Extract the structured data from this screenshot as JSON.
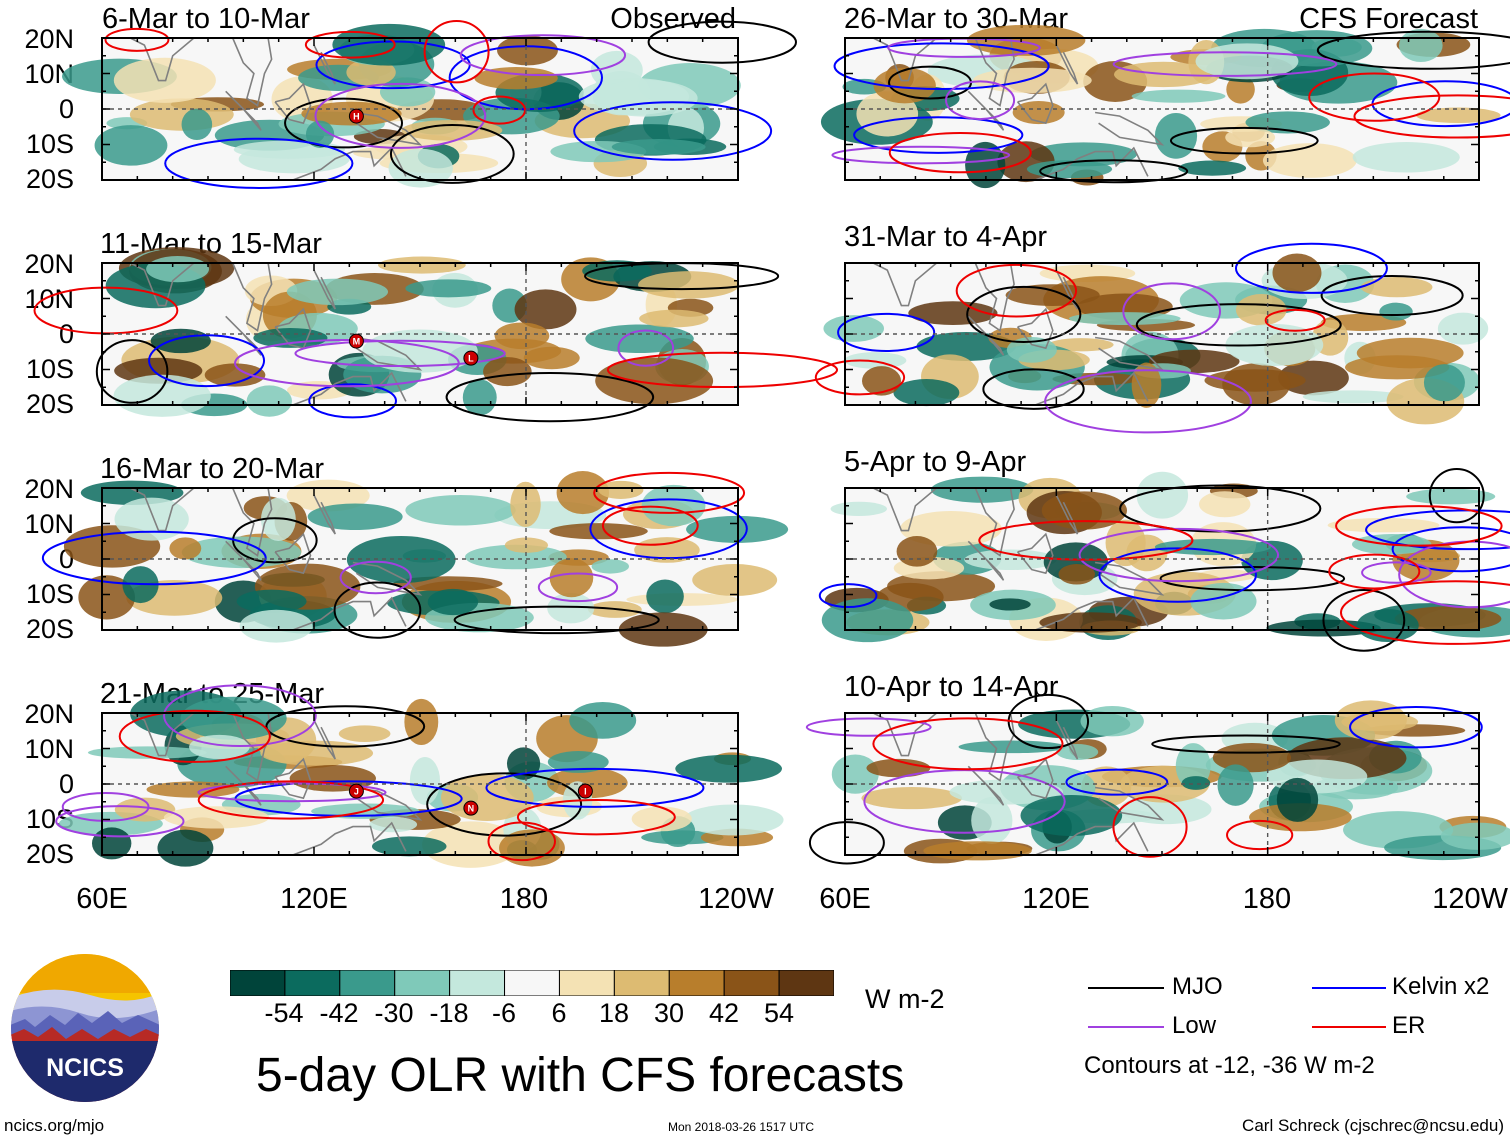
{
  "left_column": {
    "tag": "Observed",
    "panels": [
      {
        "title": "6-Mar to 10-Mar"
      },
      {
        "title": "11-Mar to 15-Mar"
      },
      {
        "title": "16-Mar to 20-Mar"
      },
      {
        "title": "21-Mar to 25-Mar"
      }
    ]
  },
  "right_column": {
    "tag": "CFS Forecast",
    "panels": [
      {
        "title": "26-Mar to 30-Mar"
      },
      {
        "title": "31-Mar to 4-Apr"
      },
      {
        "title": "5-Apr to 9-Apr"
      },
      {
        "title": "10-Apr to 14-Apr"
      }
    ]
  },
  "lat_labels": [
    "20N",
    "10N",
    "0",
    "10S",
    "20S"
  ],
  "lon_labels": [
    "60E",
    "120E",
    "180",
    "120W"
  ],
  "colorbar": {
    "colors": [
      "#00443a",
      "#0b6b5e",
      "#3a9a8c",
      "#7fc9b9",
      "#c4e8dd",
      "#f7f7f7",
      "#f4e2b4",
      "#ddbb72",
      "#b87e2c",
      "#8a5418",
      "#5e3612"
    ],
    "tick_labels": [
      "-54",
      "-42",
      "-30",
      "-18",
      "-6",
      "6",
      "18",
      "30",
      "42",
      "54"
    ],
    "units": "W m-2"
  },
  "title": "5-day OLR with CFS forecasts",
  "legend": {
    "items": [
      {
        "label": "MJO",
        "color": "#000000"
      },
      {
        "label": "Kelvin x2",
        "color": "#0000ff"
      },
      {
        "label": "Low",
        "color": "#a040e0"
      },
      {
        "label": "ER",
        "color": "#ee0000"
      }
    ],
    "note": "Contours at -12, -36 W m-2"
  },
  "logo": {
    "text": "NCICS"
  },
  "footer": {
    "url": "ncics.org/mjo",
    "timestamp": "Mon 2018-03-26 1517 UTC",
    "credit": "Carl Schreck (cjschrec@ncsu.edu)"
  },
  "storm_markers": [
    {
      "panel": "left-0",
      "label": "H"
    },
    {
      "panel": "left-1",
      "label": "M"
    },
    {
      "panel": "left-1",
      "label": "L"
    },
    {
      "panel": "left-3",
      "label": "J"
    },
    {
      "panel": "left-3",
      "label": "N"
    },
    {
      "panel": "left-3",
      "label": "I"
    }
  ]
}
